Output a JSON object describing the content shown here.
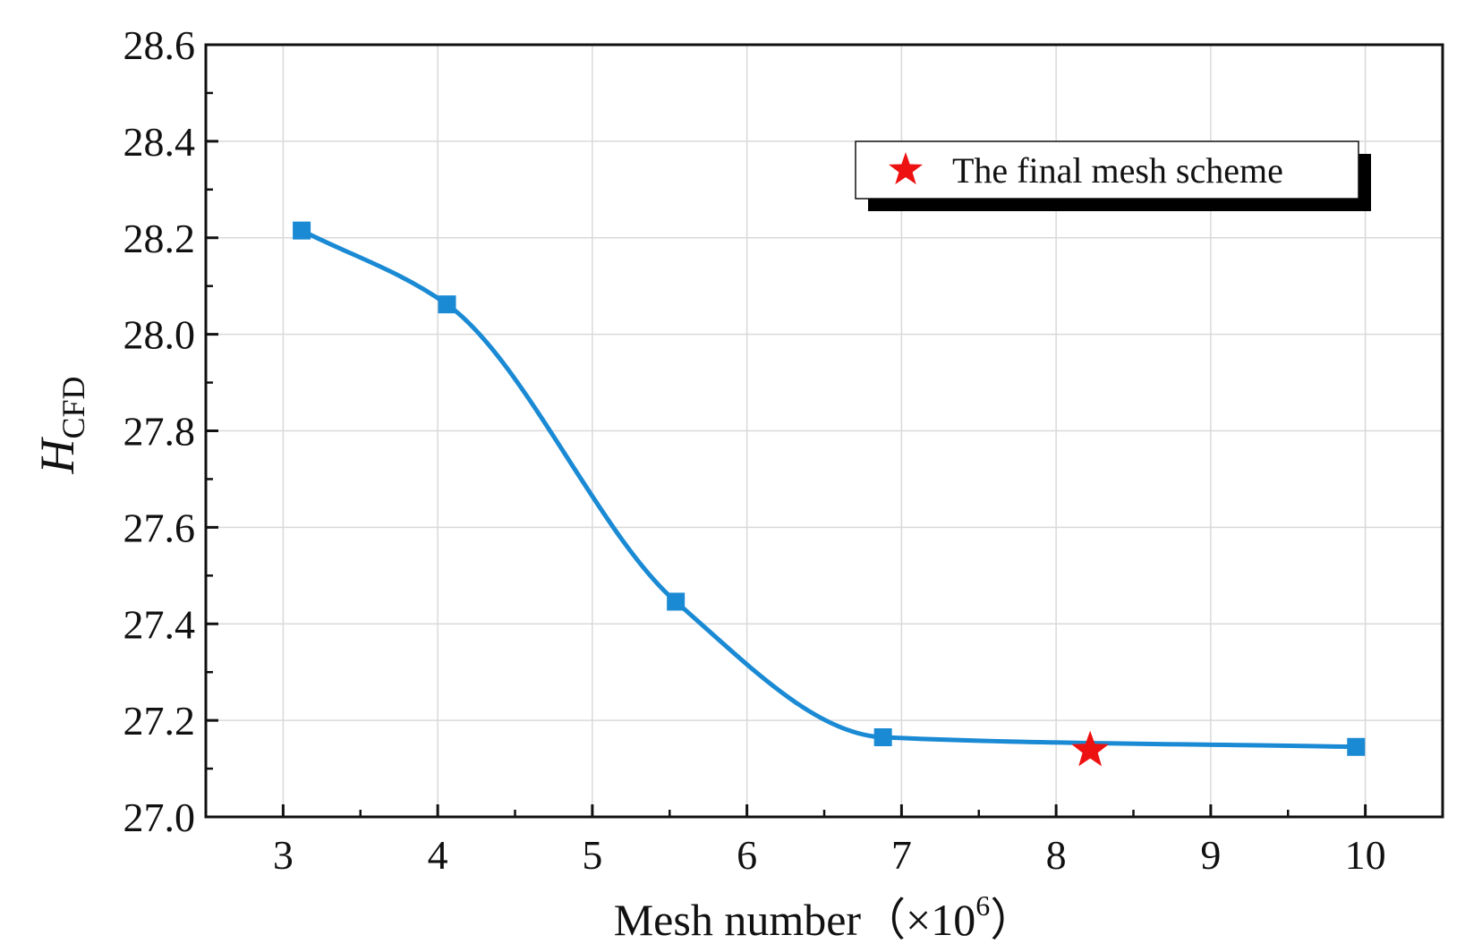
{
  "chart_data": {
    "type": "line",
    "xlabel": "Mesh number",
    "xlabel_unit_prefix": "（×10",
    "xlabel_unit_exp": "6",
    "xlabel_unit_suffix": "）",
    "ylabel_main": "H",
    "ylabel_sub": "CFD",
    "xlim": [
      2.5,
      10.5
    ],
    "ylim": [
      27.0,
      28.6
    ],
    "x_ticks": [
      3,
      4,
      5,
      6,
      7,
      8,
      9,
      10
    ],
    "y_ticks": [
      27.0,
      27.2,
      27.4,
      27.6,
      27.8,
      28.0,
      28.2,
      28.4,
      28.6
    ],
    "grid": true,
    "series": [
      {
        "color": "#1a8ad4",
        "marker": "square",
        "x": [
          3.12,
          4.06,
          5.54,
          6.88,
          9.94
        ],
        "y": [
          28.215,
          28.062,
          27.446,
          27.165,
          27.145
        ]
      }
    ],
    "highlight": {
      "label": "The final mesh scheme",
      "marker": "star",
      "color": "#ee1111",
      "x": 8.22,
      "y": 27.138
    },
    "legend_position": "top-right"
  }
}
